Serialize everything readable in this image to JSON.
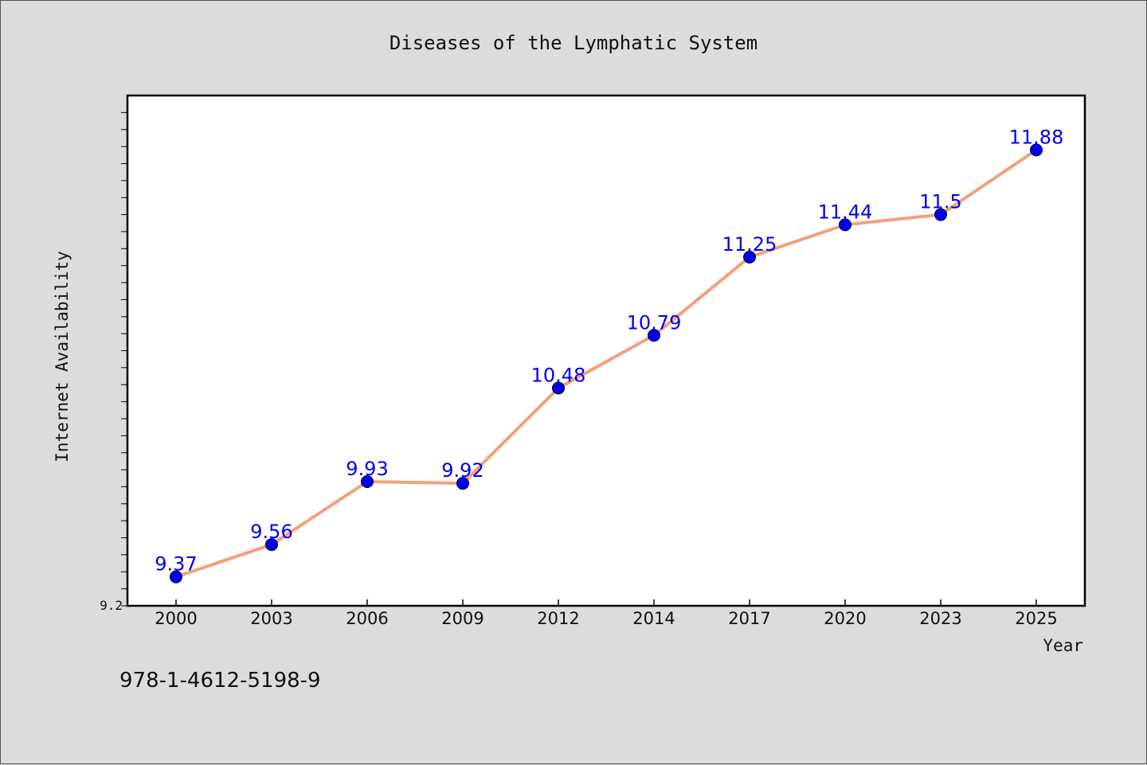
{
  "chart_data": {
    "type": "line",
    "title": "Diseases of the Lymphatic System",
    "xlabel": "Year",
    "ylabel": "Internet Availability",
    "categories": [
      "2000",
      "2003",
      "2006",
      "2009",
      "2012",
      "2014",
      "2017",
      "2020",
      "2023",
      "2025"
    ],
    "series": [
      {
        "values": [
          9.37,
          9.56,
          9.93,
          9.92,
          10.48,
          10.79,
          11.25,
          11.44,
          11.5,
          11.88
        ],
        "labels": [
          "9.37",
          "9.56",
          "9.93",
          "9.92",
          "10.48",
          "10.79",
          "11.25",
          "11.44",
          "11.5",
          "11.88"
        ]
      }
    ],
    "ylim": [
      9.2,
      12.2
    ],
    "yticks": [
      "9.2"
    ],
    "grid": false,
    "legend": "none",
    "colors": {
      "line": "#f4a07a",
      "marker": "#0000ee",
      "data_label": "#0000ee",
      "plot_background": "#ffffff",
      "page_background": "#dcdcdc"
    }
  },
  "footer": {
    "isbn": "978-1-4612-5198-9"
  }
}
